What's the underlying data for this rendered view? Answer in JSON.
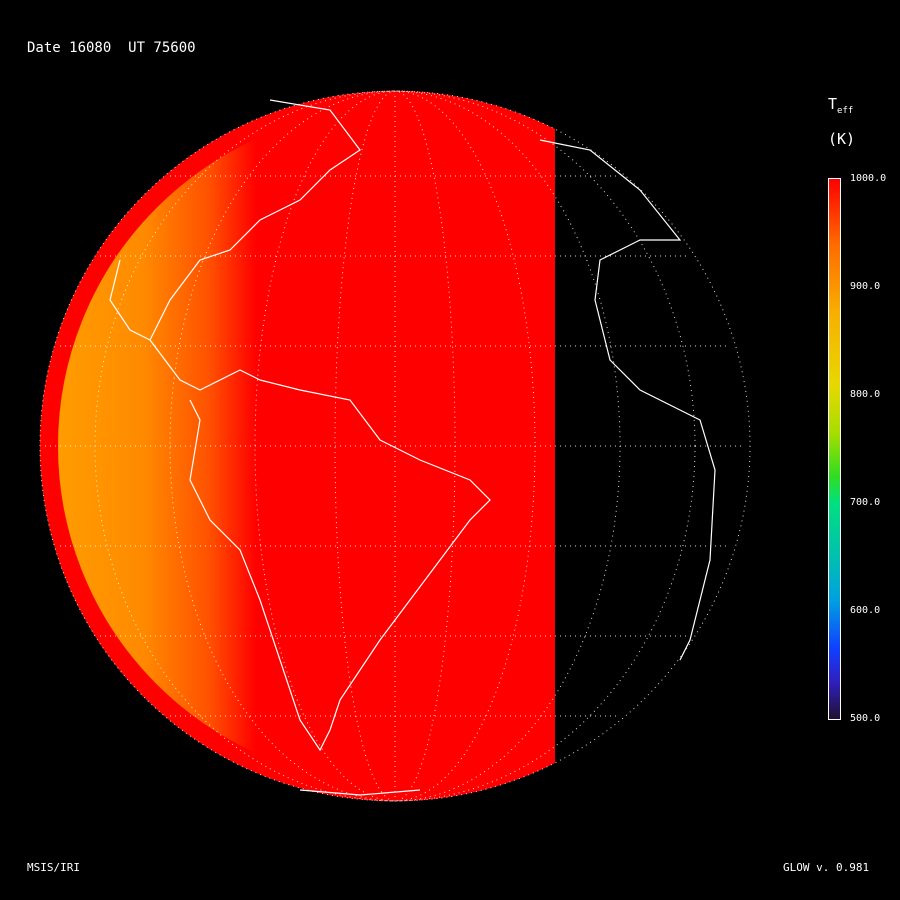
{
  "header": {
    "title": "Date 16080  UT 75600"
  },
  "colorbar": {
    "label_main": "T",
    "label_sub": "eff",
    "unit": "(K)",
    "ticks": [
      "1000.0",
      "900.0",
      "800.0",
      "700.0",
      "600.0",
      "500.0"
    ],
    "range": [
      500,
      1000
    ],
    "colors": {
      "max": "#ff0000",
      "high": "#ff8000",
      "mid": "#e8d800",
      "low_mid": "#00e080",
      "low": "#1040ff",
      "min": "#201030"
    }
  },
  "map": {
    "projection": "orthographic",
    "dayside_color": "#ff0000",
    "limb_color": "#ff8c00",
    "nightside_color": "#000000",
    "coastline_color": "#ffffff",
    "graticule": "dotted"
  },
  "footer": {
    "left": "MSIS/IRI",
    "right": "GLOW v. 0.981"
  }
}
